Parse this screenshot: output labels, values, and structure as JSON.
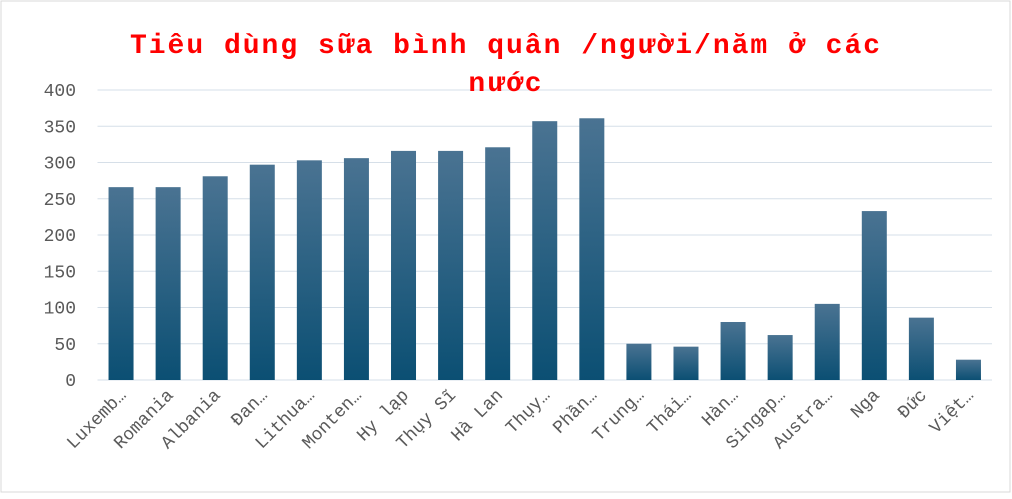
{
  "chart_data": {
    "type": "bar",
    "title": "Tiêu dùng sữa bình quân /người/năm ở các nước",
    "categories": [
      "Luxemb…",
      "Romania",
      "Albania",
      "Đan…",
      "Lithua…",
      "Monten…",
      "Hy lạp",
      "Thụy Sĩ",
      "Hà Lan",
      "Thụy…",
      "Phần…",
      "Trung…",
      "Thái…",
      "Hàn…",
      "Singap…",
      "Austra…",
      "Nga",
      "Đức",
      "Việt…"
    ],
    "values": [
      266,
      266,
      281,
      297,
      303,
      306,
      316,
      316,
      321,
      357,
      361,
      50,
      46,
      80,
      62,
      105,
      233,
      86,
      28
    ],
    "color": "#0b4f73",
    "ylim": [
      0,
      400
    ],
    "yticks": [
      0,
      50,
      100,
      150,
      200,
      250,
      300,
      350,
      400
    ],
    "grid": true
  }
}
